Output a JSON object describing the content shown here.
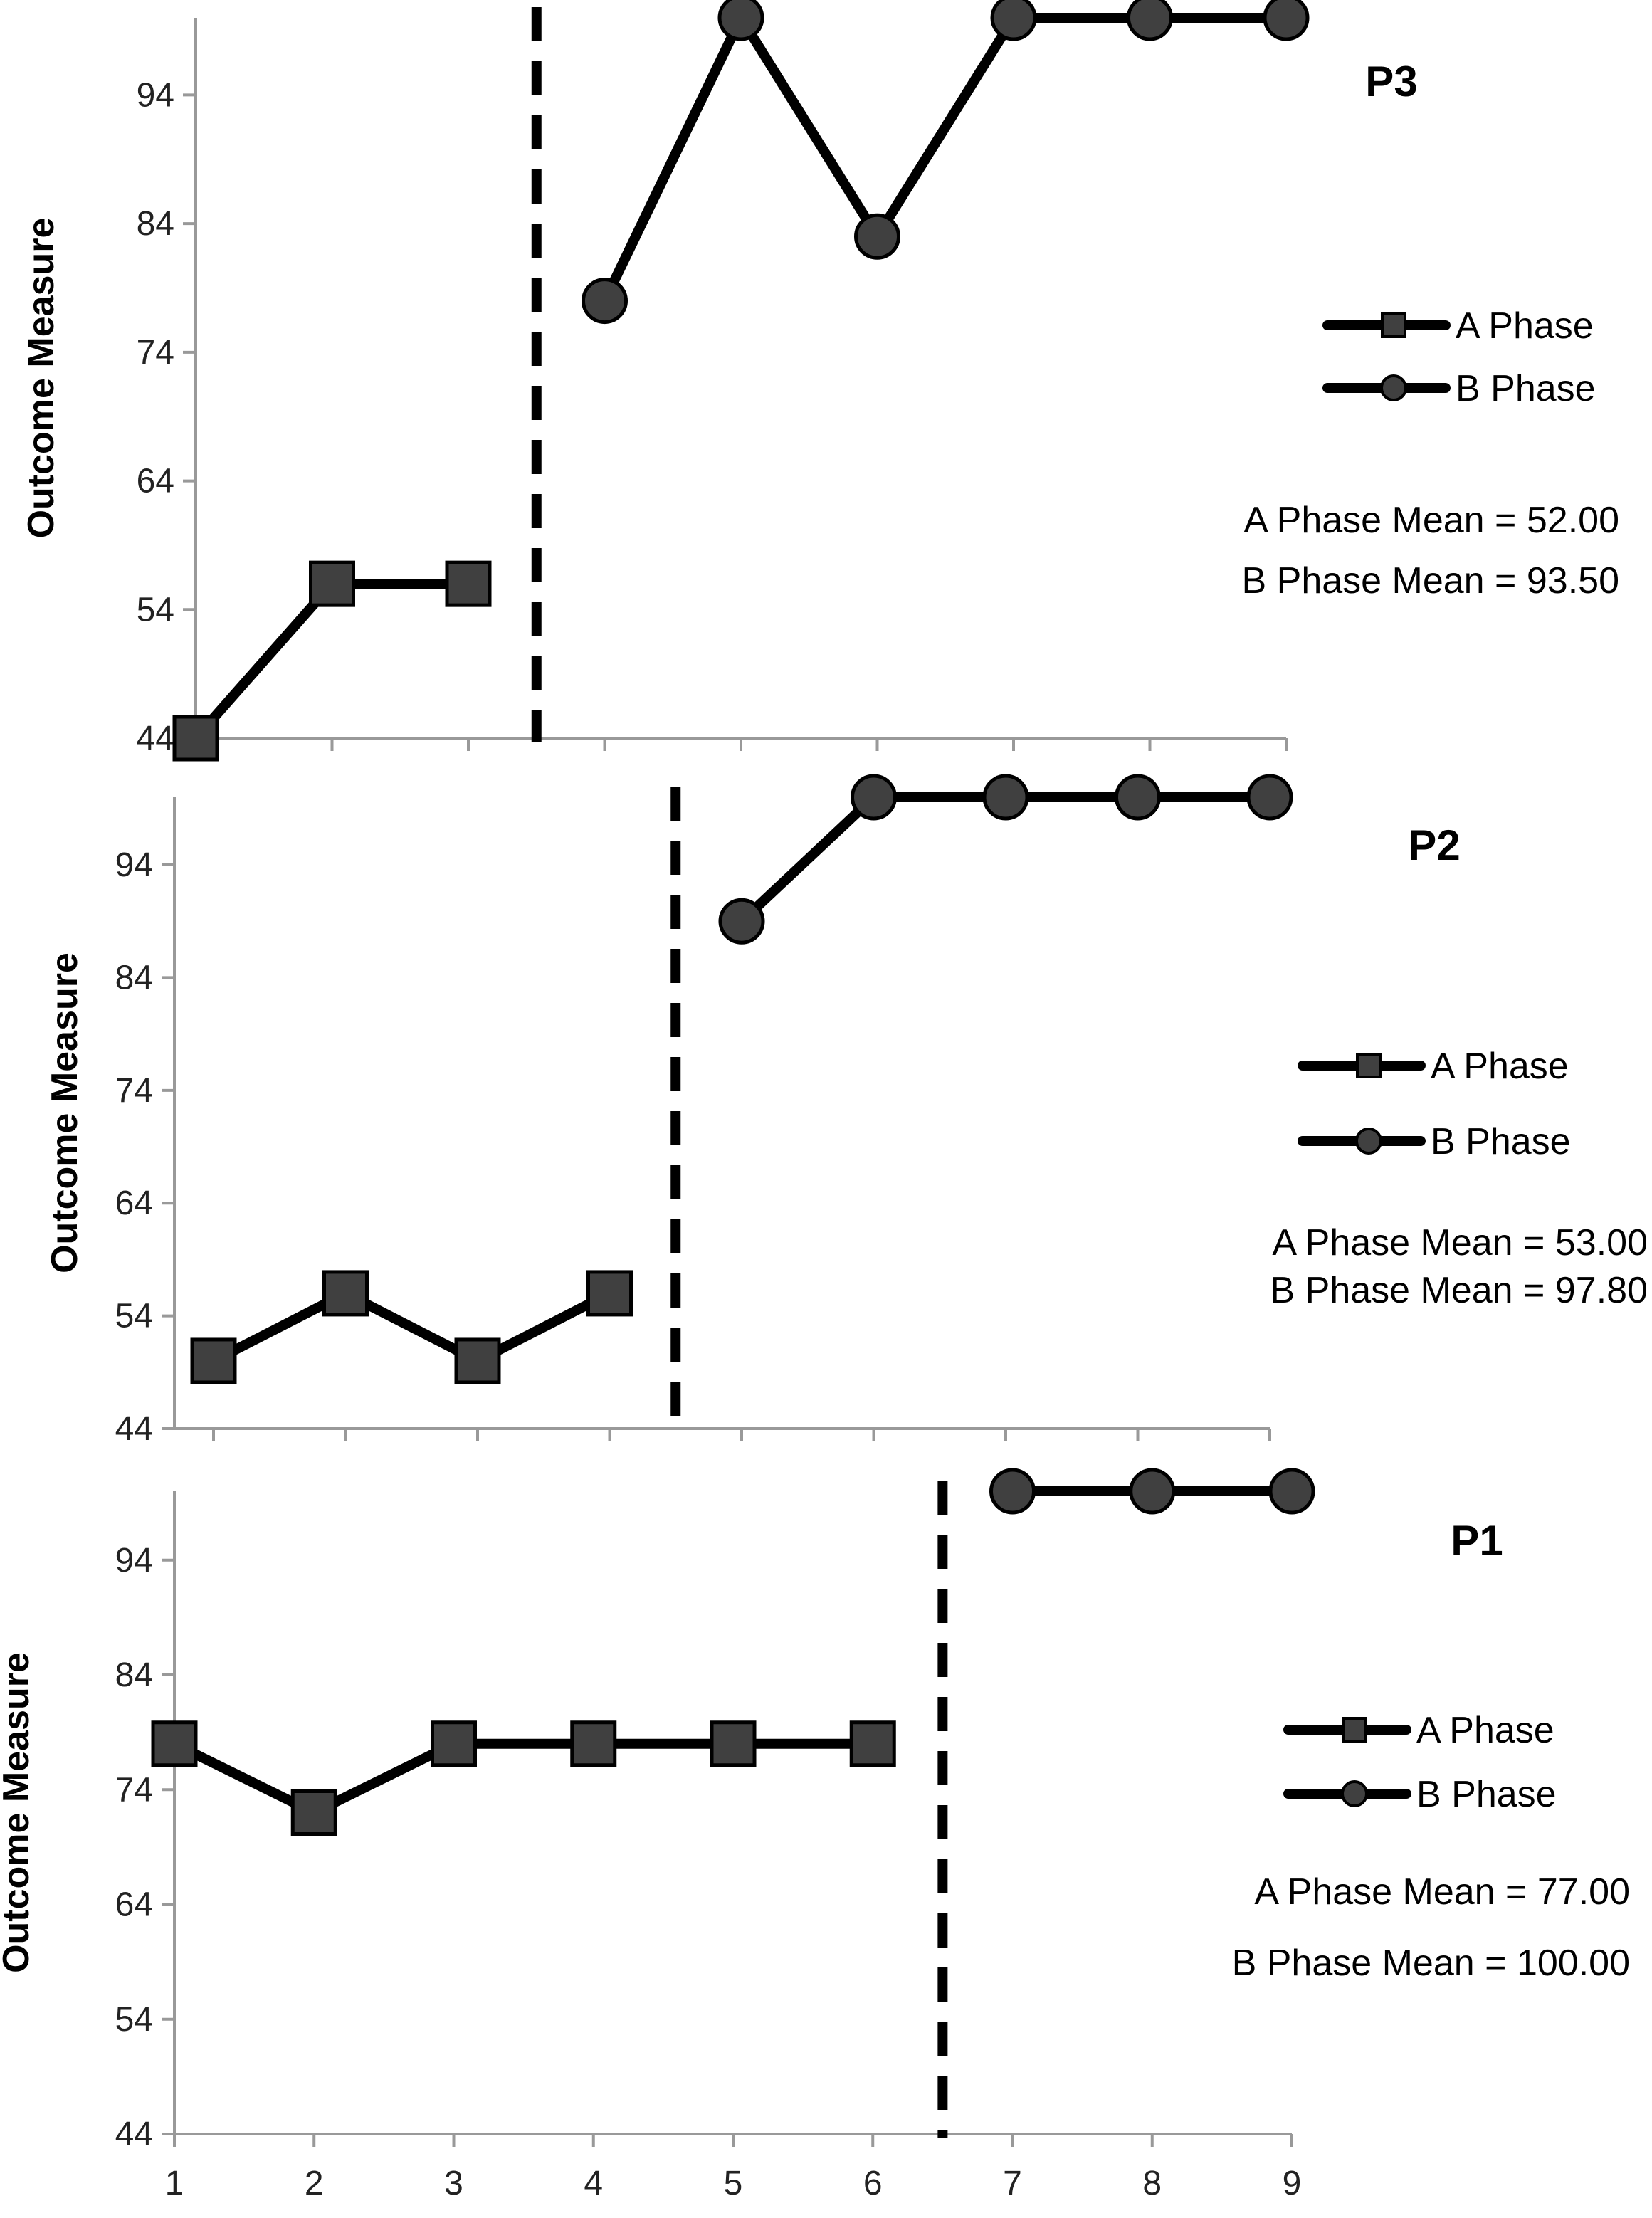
{
  "chart_data": [
    {
      "type": "line",
      "title": "P3",
      "ylabel": "Outcome Measure",
      "xlabel": "",
      "ylim": [
        44,
        100
      ],
      "yticks": [
        44,
        54,
        64,
        74,
        84,
        94
      ],
      "xlim": [
        1,
        9
      ],
      "phase_change_x": 3.5,
      "series": [
        {
          "name": "A Phase",
          "marker": "square",
          "x": [
            1,
            2,
            3
          ],
          "values": [
            44,
            56,
            56
          ]
        },
        {
          "name": "B Phase",
          "marker": "circle",
          "x": [
            4,
            5,
            6,
            7,
            8,
            9
          ],
          "values": [
            78,
            100,
            83,
            100,
            100,
            100
          ]
        }
      ],
      "annotations": [
        "A Phase Mean = 52.00",
        "B Phase Mean = 93.50"
      ]
    },
    {
      "type": "line",
      "title": "P2",
      "ylabel": "Outcome Measure",
      "xlabel": "",
      "ylim": [
        44,
        100
      ],
      "yticks": [
        44,
        54,
        64,
        74,
        84,
        94
      ],
      "xlim": [
        1,
        9
      ],
      "phase_change_x": 4.5,
      "series": [
        {
          "name": "A Phase",
          "marker": "square",
          "x": [
            1,
            2,
            3,
            4
          ],
          "values": [
            50,
            56,
            50,
            56
          ]
        },
        {
          "name": "B Phase",
          "marker": "circle",
          "x": [
            5,
            6,
            7,
            8,
            9
          ],
          "values": [
            89,
            100,
            100,
            100,
            100
          ]
        }
      ],
      "annotations": [
        "A Phase Mean = 53.00",
        "B Phase Mean = 97.80"
      ]
    },
    {
      "type": "line",
      "title": "P1",
      "ylabel": "Outcome Measure",
      "xlabel": "",
      "ylim": [
        44,
        100
      ],
      "yticks": [
        44,
        54,
        64,
        74,
        84,
        94
      ],
      "xlim": [
        1,
        9
      ],
      "xticks": [
        1,
        2,
        3,
        4,
        5,
        6,
        7,
        8,
        9
      ],
      "phase_change_x": 6.5,
      "series": [
        {
          "name": "A Phase",
          "marker": "square",
          "x": [
            1,
            2,
            3,
            4,
            5,
            6
          ],
          "values": [
            78,
            72,
            78,
            78,
            78,
            78
          ]
        },
        {
          "name": "B Phase",
          "marker": "circle",
          "x": [
            7,
            8,
            9
          ],
          "values": [
            100,
            100,
            100
          ]
        }
      ],
      "annotations": [
        "A Phase Mean = 77.00",
        "B Phase Mean = 100.00"
      ]
    }
  ]
}
